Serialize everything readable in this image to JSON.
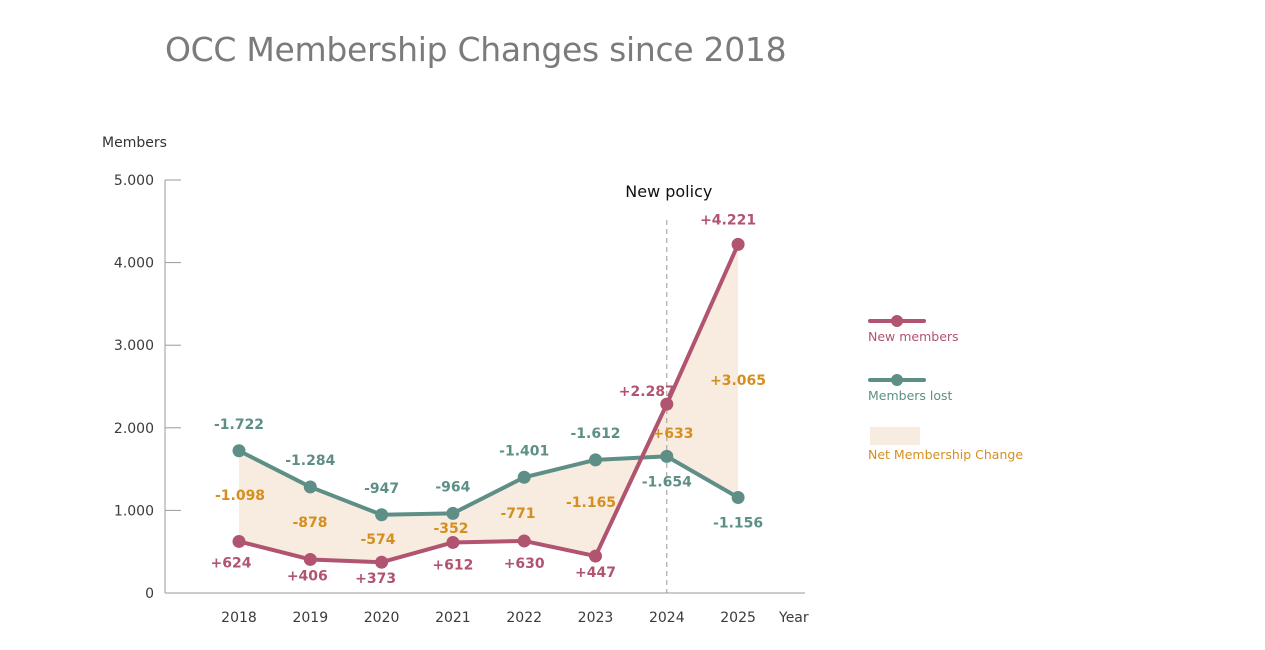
{
  "chart_data": {
    "type": "line",
    "title": "OCC Membership Changes since 2018",
    "ylabel": "Members",
    "xlabel": "Year",
    "ylim": [
      0,
      5000
    ],
    "yticks": [
      "0",
      "1.000",
      "2.000",
      "3.000",
      "4.000",
      "5.000"
    ],
    "yticks_values": [
      0,
      1000,
      2000,
      3000,
      4000,
      5000
    ],
    "categories": [
      "2018",
      "2019",
      "2020",
      "2021",
      "2022",
      "2023",
      "2024",
      "2025"
    ],
    "series": [
      {
        "name": "New members",
        "color": "#b05470",
        "values": [
          624,
          406,
          373,
          612,
          630,
          447,
          2287,
          4221
        ],
        "labels": [
          "+624",
          "+406",
          "+373",
          "+612",
          "+630",
          "+447",
          "+2.287",
          "+4.221"
        ]
      },
      {
        "name": "Members lost",
        "color": "#5e8f86",
        "values": [
          1722,
          1284,
          947,
          964,
          1401,
          1612,
          1654,
          1156
        ],
        "labels": [
          "-1.722",
          "-1.284",
          "-947",
          "-964",
          "-1.401",
          "-1.612",
          "-1.654",
          "-1.156"
        ]
      }
    ],
    "net_change": {
      "name": "Net Membership Change",
      "color": "#d48f1f",
      "fill": "#f8ebdf",
      "values": [
        -1098,
        -878,
        -574,
        -352,
        -771,
        -1165,
        633,
        3065
      ],
      "labels": [
        "-1.098",
        "-878",
        "-574",
        "-352",
        "-771",
        "-1.165",
        "+633",
        "+3.065"
      ]
    },
    "annotation": {
      "text": "New policy",
      "x": "2024"
    },
    "grid": false,
    "legend_position": "right"
  }
}
